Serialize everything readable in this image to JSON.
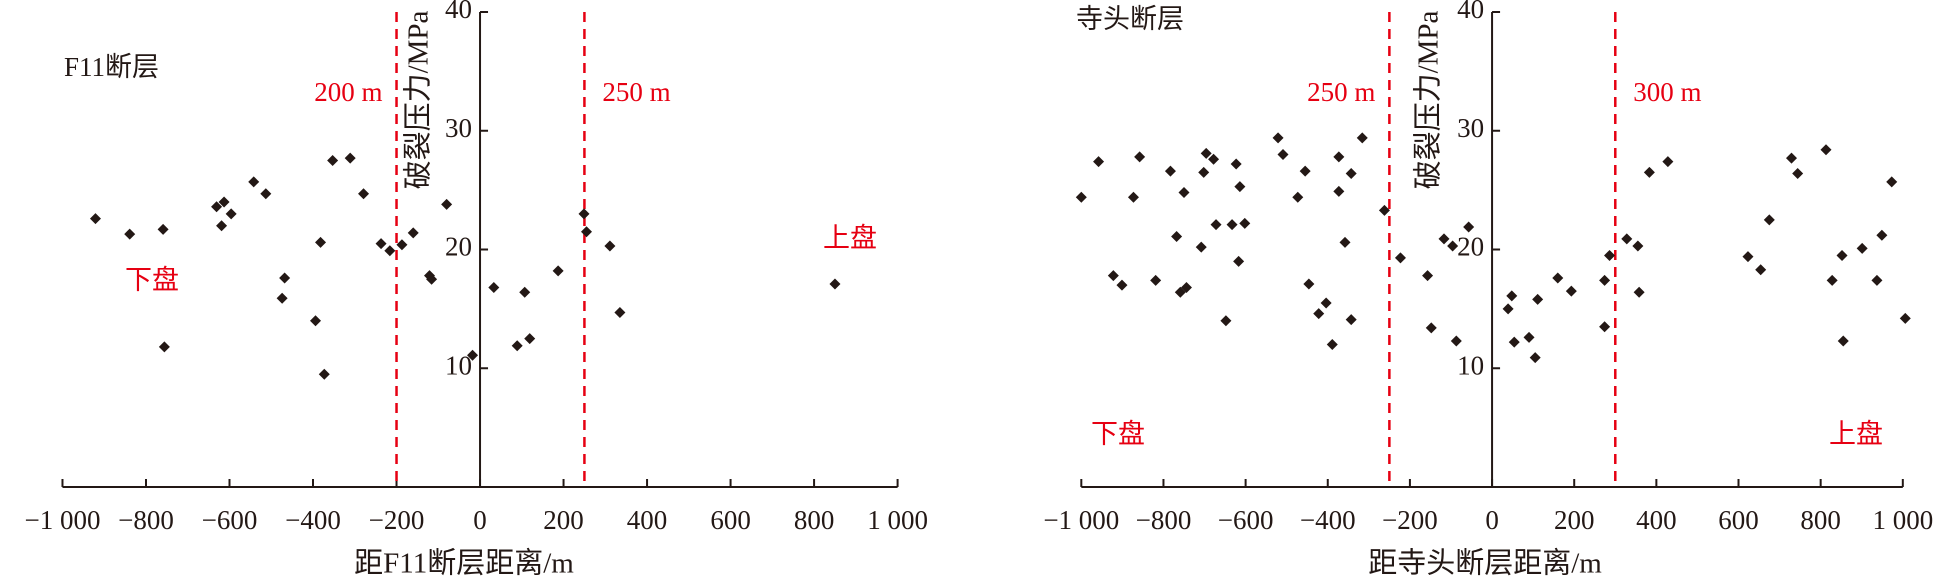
{
  "chart_data": [
    {
      "type": "scatter",
      "title": "F11断层",
      "x_label": "距F11断层距离/m",
      "y_label": "破裂压力/MPa",
      "hanging_wall_label": "上盘",
      "footwall_label": "下盘",
      "color": "#231815",
      "line_color": "#e60012",
      "xlim": [
        -1000,
        1000
      ],
      "ylim": [
        0,
        40
      ],
      "xticks": [
        {
          "value": -1000,
          "label": "−1 000"
        },
        {
          "value": -800,
          "label": "−800"
        },
        {
          "value": -600,
          "label": "−600"
        },
        {
          "value": -400,
          "label": "−400"
        },
        {
          "value": -200,
          "label": "−200"
        },
        0,
        200,
        400,
        600,
        800,
        {
          "value": 1000,
          "label": "1 000"
        }
      ],
      "yticks": [
        10,
        20,
        30,
        40
      ],
      "vlines": [
        {
          "value": -200,
          "label": "200 m"
        },
        {
          "value": 250,
          "label": "250 m"
        }
      ],
      "x": [
        -921,
        -839,
        -759,
        -756,
        -631,
        -613,
        -596,
        -619,
        -542,
        -513,
        -468,
        -474,
        -394,
        -382,
        -373,
        -353,
        -311,
        -279,
        -237,
        -216,
        -187,
        -160,
        -121,
        -116,
        -80,
        -18,
        33,
        89,
        107,
        119,
        187,
        249,
        255,
        311,
        335,
        850
      ],
      "y": [
        22.6,
        21.3,
        21.7,
        11.8,
        23.6,
        24.0,
        23.0,
        22.0,
        25.7,
        24.7,
        17.6,
        15.9,
        14.0,
        20.6,
        9.5,
        27.5,
        27.7,
        24.7,
        20.5,
        19.9,
        20.4,
        21.4,
        17.8,
        17.5,
        23.8,
        11.1,
        16.8,
        11.9,
        16.4,
        12.5,
        18.2,
        23.0,
        21.5,
        20.3,
        14.7,
        17.1
      ]
    },
    {
      "type": "scatter",
      "title": "寺头断层",
      "x_label": "距寺头断层距离/m",
      "y_label": "破裂压力/MPa",
      "hanging_wall_label": "上盘",
      "footwall_label": "下盘",
      "color": "#231815",
      "line_color": "#e60012",
      "xlim": [
        -1000,
        1000
      ],
      "ylim": [
        0,
        40
      ],
      "xticks": [
        {
          "value": -1000,
          "label": "−1 000"
        },
        {
          "value": -800,
          "label": "−800"
        },
        {
          "value": -600,
          "label": "−600"
        },
        {
          "value": -400,
          "label": "−400"
        },
        {
          "value": -200,
          "label": "−200"
        },
        0,
        200,
        400,
        600,
        800,
        {
          "value": 1000,
          "label": "1 000"
        }
      ],
      "yticks": [
        10,
        20,
        30,
        40
      ],
      "vlines": [
        {
          "value": -250,
          "label": "250 m"
        },
        {
          "value": 300,
          "label": "300 m"
        }
      ],
      "x": [
        -1000,
        -958,
        -873,
        -858,
        -922,
        -901,
        -819,
        -783,
        -768,
        -759,
        -744,
        -750,
        -708,
        -702,
        -696,
        -678,
        -672,
        -648,
        -633,
        -623,
        -614,
        -617,
        -602,
        -521,
        -509,
        -473,
        -455,
        -446,
        -422,
        -404,
        -389,
        -373,
        -373,
        -358,
        -343,
        -343,
        -316,
        -262,
        -223,
        -157,
        -148,
        -117,
        -96,
        -87,
        -57,
        39,
        48,
        54,
        90,
        105,
        111,
        160,
        193,
        274,
        274,
        286,
        328,
        355,
        358,
        383,
        428,
        623,
        654,
        675,
        729,
        744,
        813,
        828,
        852,
        855,
        901,
        937,
        949,
        973,
        1006
      ],
      "y": [
        24.4,
        27.4,
        24.4,
        27.8,
        17.8,
        17.0,
        17.4,
        26.6,
        21.1,
        16.4,
        16.8,
        24.8,
        20.2,
        26.5,
        28.1,
        27.6,
        22.1,
        14.0,
        22.1,
        27.2,
        25.3,
        19.0,
        22.2,
        29.4,
        28.0,
        24.4,
        26.6,
        17.1,
        14.6,
        15.5,
        12.0,
        27.8,
        24.9,
        20.6,
        14.1,
        26.4,
        29.4,
        23.3,
        19.3,
        17.8,
        13.4,
        20.9,
        20.3,
        12.3,
        21.9,
        15.0,
        16.1,
        12.2,
        12.6,
        10.9,
        15.8,
        17.6,
        16.5,
        17.4,
        13.5,
        19.5,
        20.9,
        20.3,
        16.4,
        26.5,
        27.4,
        19.4,
        18.3,
        22.5,
        27.7,
        26.4,
        28.4,
        17.4,
        19.5,
        12.3,
        20.1,
        17.4,
        21.2,
        25.7,
        14.2
      ]
    }
  ]
}
